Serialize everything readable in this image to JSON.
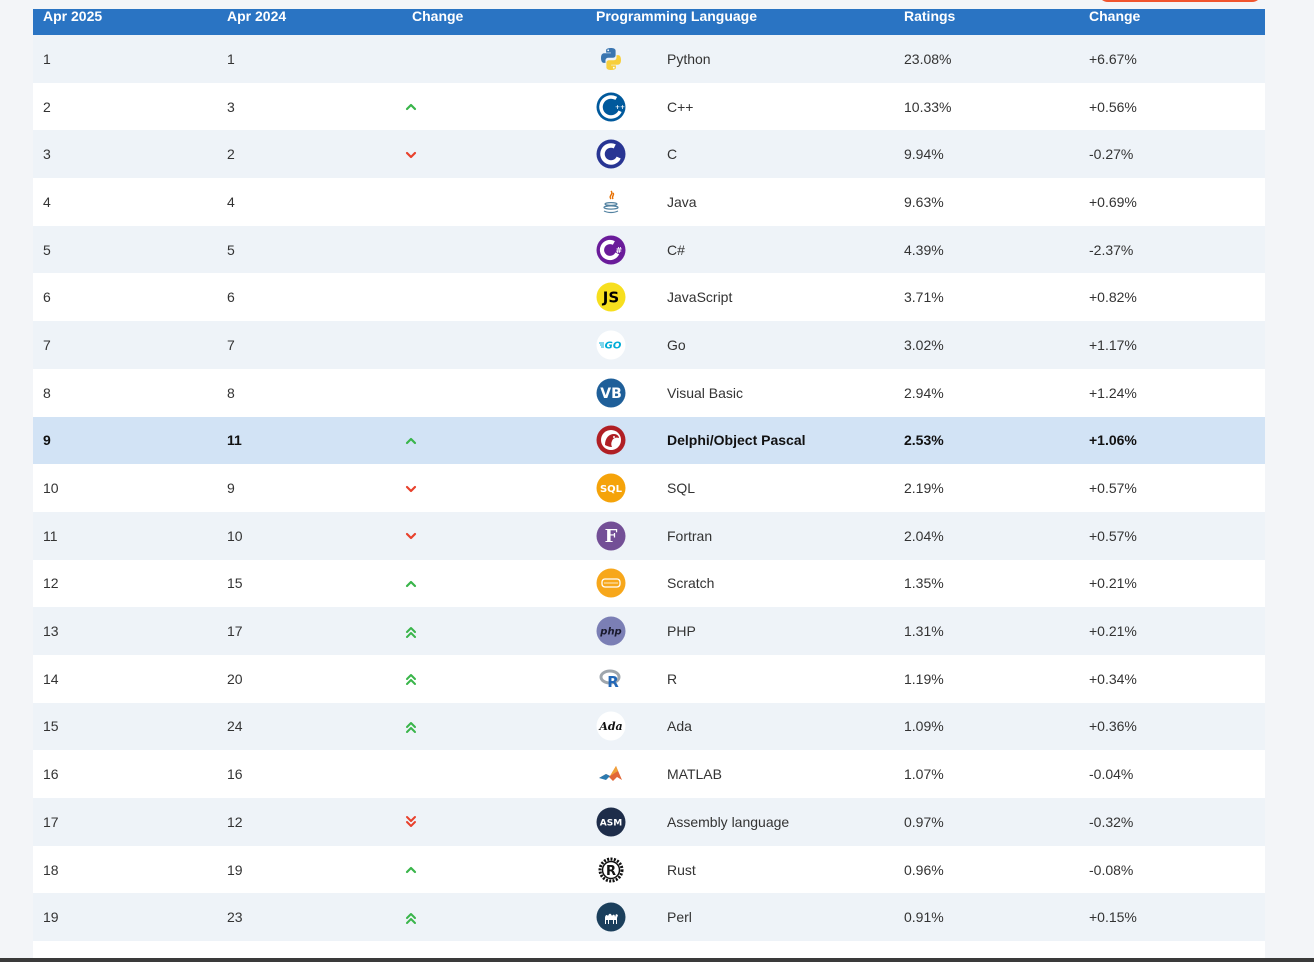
{
  "header": {
    "col_current": "Apr 2025",
    "col_previous": "Apr 2024",
    "col_change": "Change",
    "col_language": "Programming Language",
    "col_ratings": "Ratings",
    "col_rating_change": "Change"
  },
  "colors": {
    "header_bg": "#2a74c3",
    "row_alt": "#eef3f8",
    "highlight": "#d2e3f5",
    "arrow_up": "#39b54a",
    "arrow_down": "#e8412c"
  },
  "rows": [
    {
      "rank": "1",
      "prev": "1",
      "trend": "none",
      "lang": "Python",
      "rating": "23.08%",
      "change": "+6.67%",
      "icon": "python-logo-icon"
    },
    {
      "rank": "2",
      "prev": "3",
      "trend": "up",
      "lang": "C++",
      "rating": "10.33%",
      "change": "+0.56%",
      "icon": "cpp-logo-icon"
    },
    {
      "rank": "3",
      "prev": "2",
      "trend": "down",
      "lang": "C",
      "rating": "9.94%",
      "change": "-0.27%",
      "icon": "c-logo-icon"
    },
    {
      "rank": "4",
      "prev": "4",
      "trend": "none",
      "lang": "Java",
      "rating": "9.63%",
      "change": "+0.69%",
      "icon": "java-logo-icon"
    },
    {
      "rank": "5",
      "prev": "5",
      "trend": "none",
      "lang": "C#",
      "rating": "4.39%",
      "change": "-2.37%",
      "icon": "csharp-logo-icon"
    },
    {
      "rank": "6",
      "prev": "6",
      "trend": "none",
      "lang": "JavaScript",
      "rating": "3.71%",
      "change": "+0.82%",
      "icon": "javascript-logo-icon"
    },
    {
      "rank": "7",
      "prev": "7",
      "trend": "none",
      "lang": "Go",
      "rating": "3.02%",
      "change": "+1.17%",
      "icon": "go-logo-icon"
    },
    {
      "rank": "8",
      "prev": "8",
      "trend": "none",
      "lang": "Visual Basic",
      "rating": "2.94%",
      "change": "+1.24%",
      "icon": "visual-basic-logo-icon"
    },
    {
      "rank": "9",
      "prev": "11",
      "trend": "up",
      "lang": "Delphi/Object Pascal",
      "rating": "2.53%",
      "change": "+1.06%",
      "icon": "delphi-logo-icon",
      "highlight": true
    },
    {
      "rank": "10",
      "prev": "9",
      "trend": "down",
      "lang": "SQL",
      "rating": "2.19%",
      "change": "+0.57%",
      "icon": "sql-logo-icon"
    },
    {
      "rank": "11",
      "prev": "10",
      "trend": "down",
      "lang": "Fortran",
      "rating": "2.04%",
      "change": "+0.57%",
      "icon": "fortran-logo-icon"
    },
    {
      "rank": "12",
      "prev": "15",
      "trend": "up",
      "lang": "Scratch",
      "rating": "1.35%",
      "change": "+0.21%",
      "icon": "scratch-logo-icon"
    },
    {
      "rank": "13",
      "prev": "17",
      "trend": "up2",
      "lang": "PHP",
      "rating": "1.31%",
      "change": "+0.21%",
      "icon": "php-logo-icon"
    },
    {
      "rank": "14",
      "prev": "20",
      "trend": "up2",
      "lang": "R",
      "rating": "1.19%",
      "change": "+0.34%",
      "icon": "r-logo-icon"
    },
    {
      "rank": "15",
      "prev": "24",
      "trend": "up2",
      "lang": "Ada",
      "rating": "1.09%",
      "change": "+0.36%",
      "icon": "ada-logo-icon"
    },
    {
      "rank": "16",
      "prev": "16",
      "trend": "none",
      "lang": "MATLAB",
      "rating": "1.07%",
      "change": "-0.04%",
      "icon": "matlab-logo-icon"
    },
    {
      "rank": "17",
      "prev": "12",
      "trend": "down2",
      "lang": "Assembly language",
      "rating": "0.97%",
      "change": "-0.32%",
      "icon": "assembly-logo-icon"
    },
    {
      "rank": "18",
      "prev": "19",
      "trend": "up",
      "lang": "Rust",
      "rating": "0.96%",
      "change": "-0.08%",
      "icon": "rust-logo-icon"
    },
    {
      "rank": "19",
      "prev": "23",
      "trend": "up2",
      "lang": "Perl",
      "rating": "0.91%",
      "change": "+0.15%",
      "icon": "perl-logo-icon"
    }
  ]
}
